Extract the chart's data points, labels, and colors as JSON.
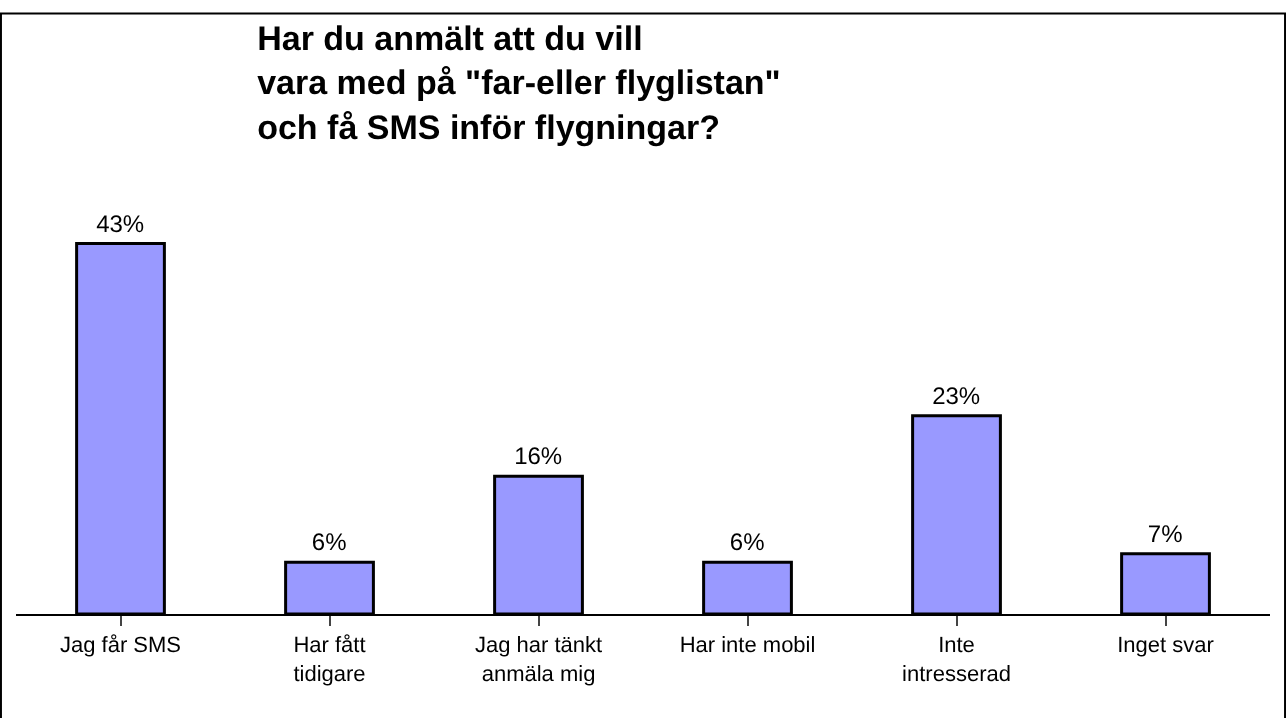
{
  "chart_data": {
    "type": "bar",
    "title": "Har du anmält att du vill\nvara med på \"far-eller flyglistan\"\noch få SMS inför flygningar?",
    "categories": [
      "Jag får SMS",
      "Har fått tidigare",
      "Jag har tänkt anmäla mig",
      "Har inte mobil",
      "Inte intresserad",
      "Inget svar"
    ],
    "values": [
      43,
      6,
      16,
      6,
      23,
      7
    ],
    "value_labels": [
      "43%",
      "6%",
      "16%",
      "6%",
      "23%",
      "7%"
    ],
    "color": "#9999ff"
  }
}
